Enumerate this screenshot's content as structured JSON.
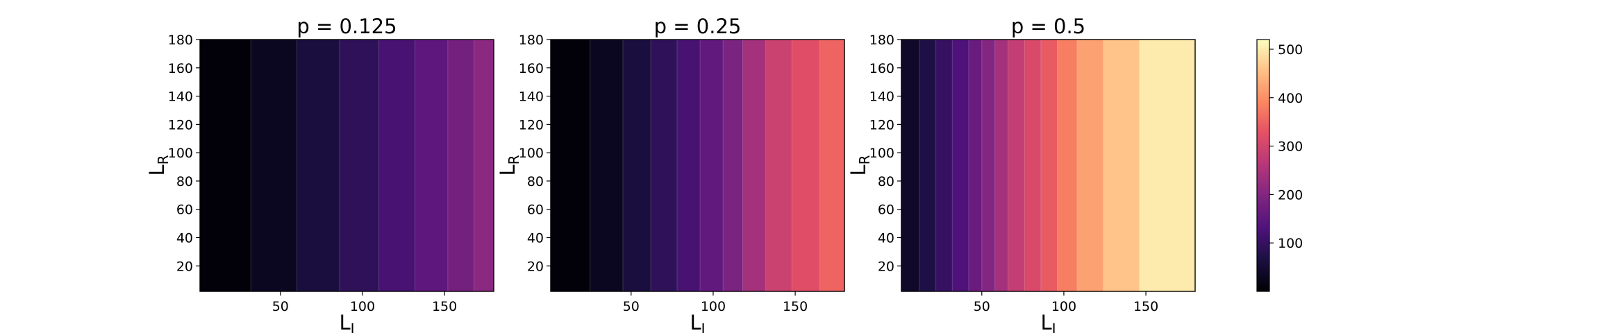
{
  "colorbar": {
    "ticks": [
      "100",
      "200",
      "300",
      "400",
      "500"
    ],
    "tick_values": [
      100,
      200,
      300,
      400,
      500
    ],
    "range": [
      0,
      520
    ],
    "colormap": "magma"
  },
  "chart_data": [
    {
      "type": "heatmap",
      "title": "p = 0.125",
      "xlabel": "L",
      "xlabel_sub": "I",
      "ylabel": "L",
      "ylabel_sub": "R",
      "xticks": [
        "50",
        "100",
        "150"
      ],
      "xtick_values": [
        50,
        100,
        150
      ],
      "yticks": [
        "20",
        "40",
        "60",
        "80",
        "100",
        "120",
        "140",
        "160",
        "180"
      ],
      "ytick_values": [
        20,
        40,
        60,
        80,
        100,
        120,
        140,
        160,
        180
      ],
      "xlim": [
        1,
        180
      ],
      "ylim": [
        2,
        180
      ],
      "bands": [
        {
          "x_from": 1,
          "x_to": 32,
          "value": 5
        },
        {
          "x_from": 32,
          "x_to": 60,
          "value": 30
        },
        {
          "x_from": 60,
          "x_to": 86,
          "value": 60
        },
        {
          "x_from": 86,
          "x_to": 110,
          "value": 90
        },
        {
          "x_from": 110,
          "x_to": 132,
          "value": 120
        },
        {
          "x_from": 132,
          "x_to": 152,
          "value": 150
        },
        {
          "x_from": 152,
          "x_to": 168,
          "value": 180
        },
        {
          "x_from": 168,
          "x_to": 180,
          "value": 210
        }
      ]
    },
    {
      "type": "heatmap",
      "title": "p = 0.25",
      "xlabel": "L",
      "xlabel_sub": "I",
      "ylabel": "L",
      "ylabel_sub": "R",
      "xticks": [
        "50",
        "100",
        "150"
      ],
      "xtick_values": [
        50,
        100,
        150
      ],
      "yticks": [
        "20",
        "40",
        "60",
        "80",
        "100",
        "120",
        "140",
        "160",
        "180"
      ],
      "ytick_values": [
        20,
        40,
        60,
        80,
        100,
        120,
        140,
        160,
        180
      ],
      "xlim": [
        1,
        180
      ],
      "ylim": [
        2,
        180
      ],
      "bands": [
        {
          "x_from": 1,
          "x_to": 25,
          "value": 5
        },
        {
          "x_from": 25,
          "x_to": 45,
          "value": 30
        },
        {
          "x_from": 45,
          "x_to": 62,
          "value": 60
        },
        {
          "x_from": 62,
          "x_to": 78,
          "value": 90
        },
        {
          "x_from": 78,
          "x_to": 92,
          "value": 120
        },
        {
          "x_from": 92,
          "x_to": 106,
          "value": 155
        },
        {
          "x_from": 106,
          "x_to": 118,
          "value": 190
        },
        {
          "x_from": 118,
          "x_to": 132,
          "value": 240
        },
        {
          "x_from": 132,
          "x_to": 148,
          "value": 290
        },
        {
          "x_from": 148,
          "x_to": 165,
          "value": 320
        },
        {
          "x_from": 165,
          "x_to": 180,
          "value": 350
        }
      ]
    },
    {
      "type": "heatmap",
      "title": "p = 0.5",
      "xlabel": "L",
      "xlabel_sub": "I",
      "ylabel": "L",
      "ylabel_sub": "R",
      "xticks": [
        "50",
        "100",
        "150"
      ],
      "xtick_values": [
        50,
        100,
        150
      ],
      "yticks": [
        "20",
        "40",
        "60",
        "80",
        "100",
        "120",
        "140",
        "160",
        "180"
      ],
      "ytick_values": [
        20,
        40,
        60,
        80,
        100,
        120,
        140,
        160,
        180
      ],
      "xlim": [
        1,
        180
      ],
      "ylim": [
        2,
        180
      ],
      "bands": [
        {
          "x_from": 1,
          "x_to": 12,
          "value": 40
        },
        {
          "x_from": 12,
          "x_to": 22,
          "value": 70
        },
        {
          "x_from": 22,
          "x_to": 32,
          "value": 100
        },
        {
          "x_from": 32,
          "x_to": 42,
          "value": 130
        },
        {
          "x_from": 42,
          "x_to": 50,
          "value": 165
        },
        {
          "x_from": 50,
          "x_to": 58,
          "value": 200
        },
        {
          "x_from": 58,
          "x_to": 66,
          "value": 240
        },
        {
          "x_from": 66,
          "x_to": 76,
          "value": 280
        },
        {
          "x_from": 76,
          "x_to": 86,
          "value": 310
        },
        {
          "x_from": 86,
          "x_to": 96,
          "value": 340
        },
        {
          "x_from": 96,
          "x_to": 108,
          "value": 380
        },
        {
          "x_from": 108,
          "x_to": 124,
          "value": 420
        },
        {
          "x_from": 124,
          "x_to": 146,
          "value": 460
        },
        {
          "x_from": 146,
          "x_to": 180,
          "value": 500
        }
      ]
    }
  ]
}
